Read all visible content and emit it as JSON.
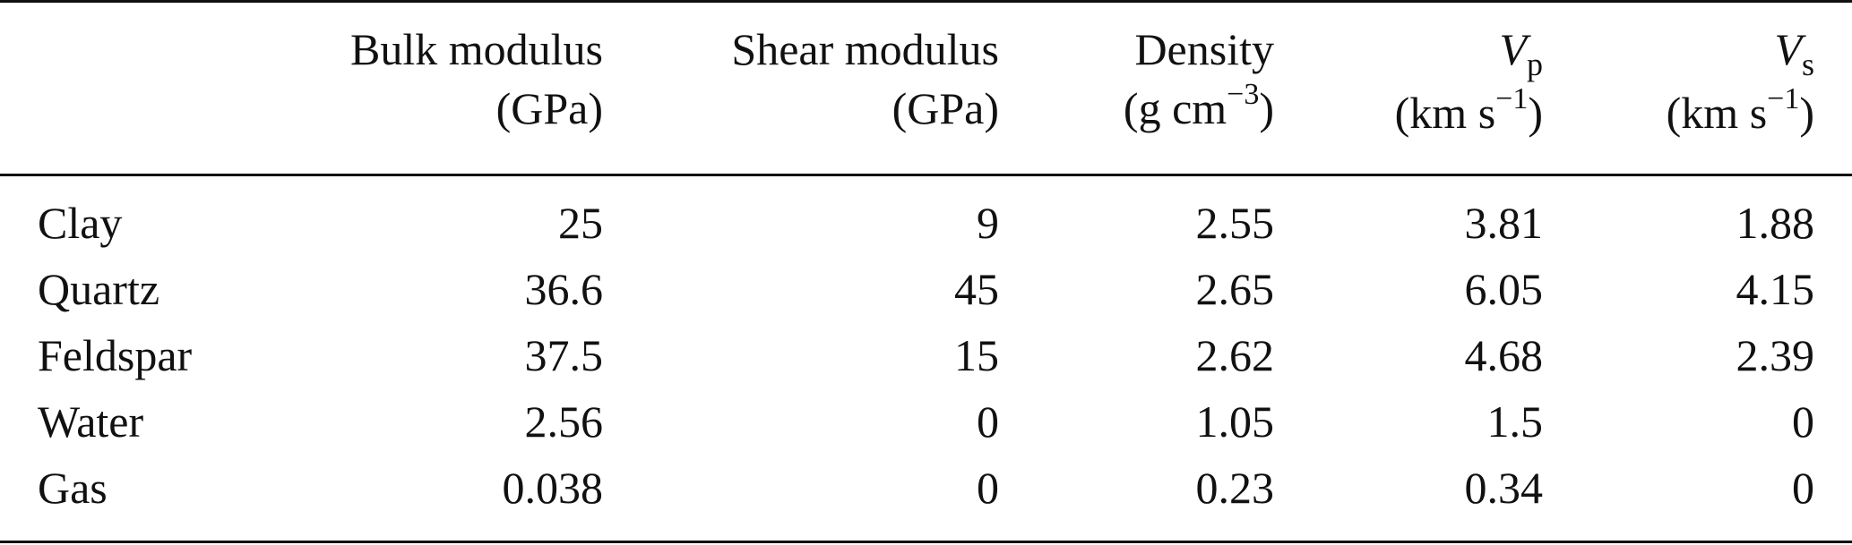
{
  "table": {
    "headers": [
      {
        "line1": "Bulk modulus",
        "line2": "(GPa)"
      },
      {
        "line1": "Shear modulus",
        "line2": "(GPa)"
      },
      {
        "line1": "Density",
        "line2_pre": "(g cm",
        "line2_sup": "−3",
        "line2_post": ")"
      },
      {
        "var": "V",
        "sub": "p",
        "line2_pre": "(km s",
        "line2_sup": "−1",
        "line2_post": ")"
      },
      {
        "var": "V",
        "sub": "s",
        "line2_pre": "(km s",
        "line2_sup": "−1",
        "line2_post": ")"
      }
    ],
    "rows": [
      {
        "material": "Clay",
        "bulk": "25",
        "shear": "9",
        "density": "2.55",
        "vp": "3.81",
        "vs": "1.88"
      },
      {
        "material": "Quartz",
        "bulk": "36.6",
        "shear": "45",
        "density": "2.65",
        "vp": "6.05",
        "vs": "4.15"
      },
      {
        "material": "Feldspar",
        "bulk": "37.5",
        "shear": "15",
        "density": "2.62",
        "vp": "4.68",
        "vs": "2.39"
      },
      {
        "material": "Water",
        "bulk": "2.56",
        "shear": "0",
        "density": "1.05",
        "vp": "1.5",
        "vs": "0"
      },
      {
        "material": "Gas",
        "bulk": "0.038",
        "shear": "0",
        "density": "0.23",
        "vp": "0.34",
        "vs": "0"
      }
    ]
  }
}
